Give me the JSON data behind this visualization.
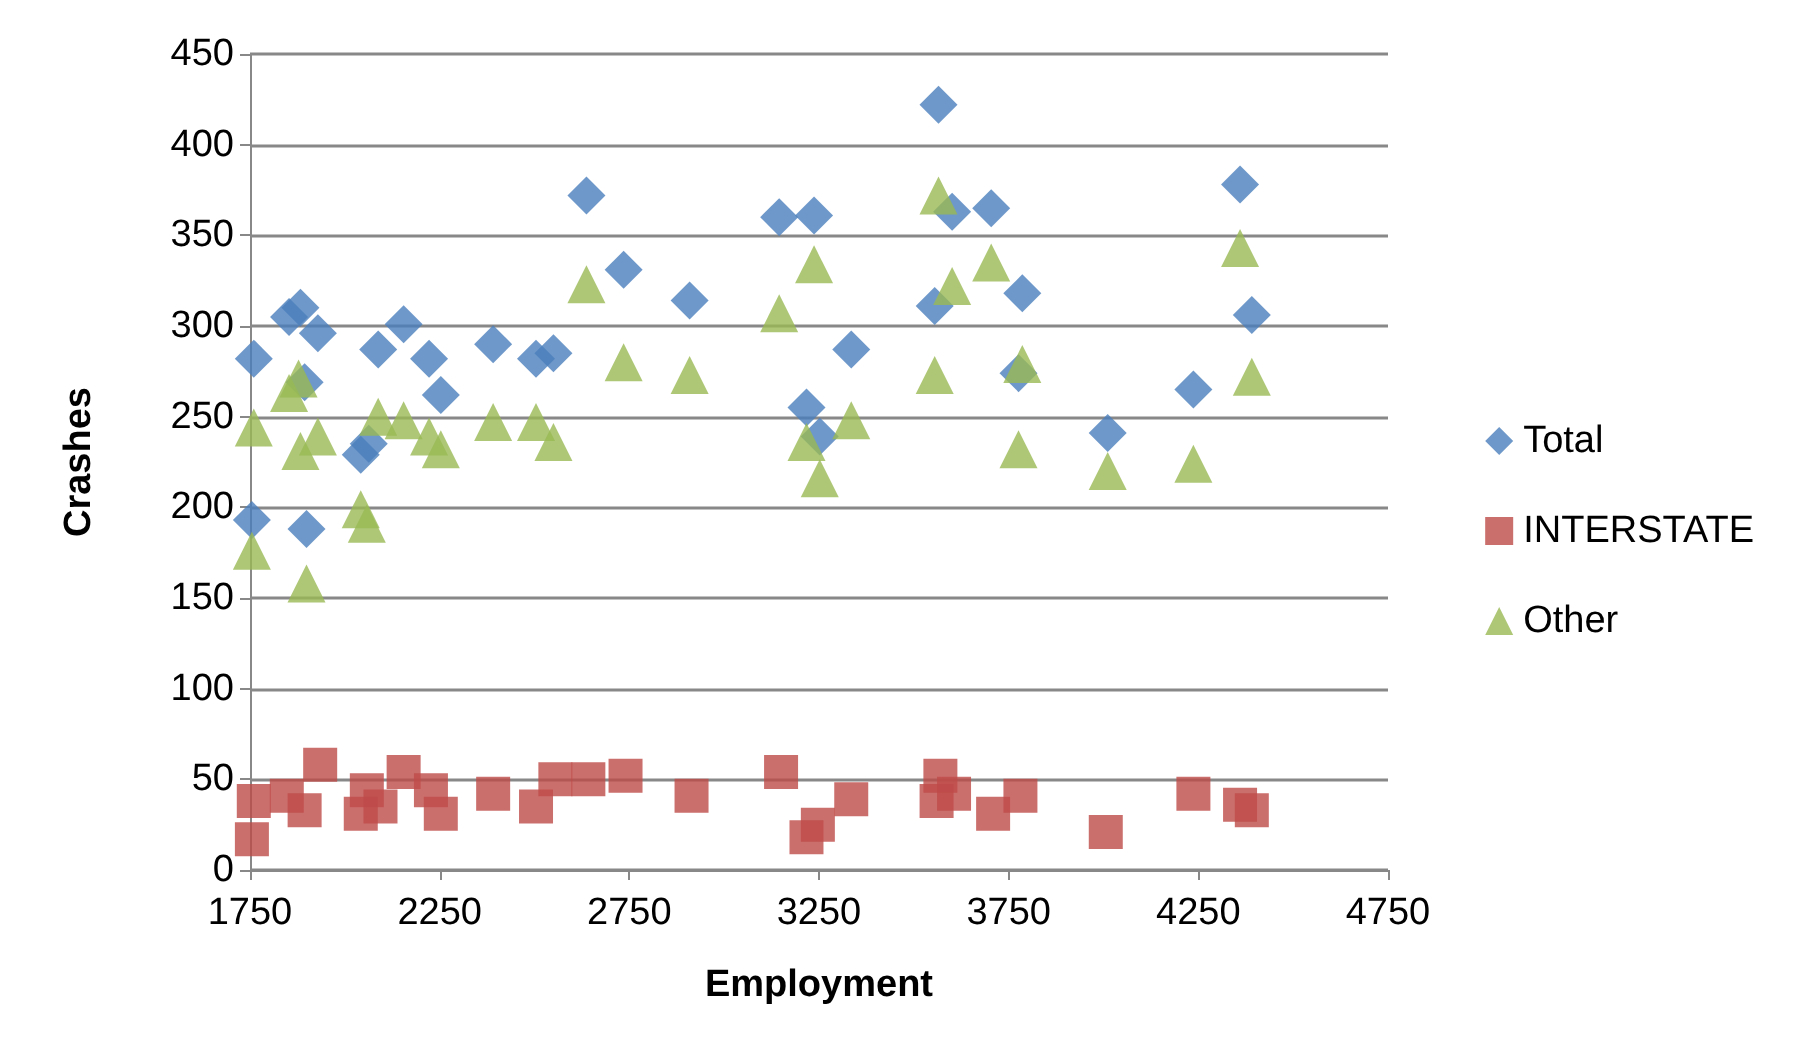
{
  "chart_data": {
    "type": "scatter",
    "xlabel": "Employment",
    "ylabel": "Crashes",
    "xlim": [
      1750,
      4750
    ],
    "xticks": [
      1750,
      2250,
      2750,
      3250,
      3750,
      4250,
      4750
    ],
    "ylim": [
      0,
      450
    ],
    "yticks": [
      0,
      50,
      100,
      150,
      200,
      250,
      300,
      350,
      400,
      450
    ],
    "grid": "y",
    "legend": "right",
    "series": [
      {
        "name": "Total",
        "color": "#4a7ebb",
        "marker": "diamond",
        "x": [
          1755,
          1760,
          1853,
          1883,
          1894,
          1899,
          1929,
          2042,
          2063,
          2088,
          2155,
          2222,
          2253,
          2391,
          2504,
          2550,
          2637,
          2735,
          2909,
          3145,
          3217,
          3237,
          3252,
          3335,
          3555,
          3565,
          3601,
          3704,
          3776,
          3786,
          4011,
          4237,
          4360,
          4391
        ],
        "values": [
          193,
          282,
          305,
          310,
          269,
          188,
          296,
          229,
          235,
          287,
          301,
          282,
          262,
          290,
          282,
          285,
          372,
          331,
          314,
          360,
          255,
          361,
          239,
          287,
          311,
          422,
          363,
          365,
          274,
          318,
          241,
          265,
          378,
          306
        ]
      },
      {
        "name": "INTERSTATE",
        "color": "#be4b48",
        "marker": "square",
        "x": [
          1755,
          1760,
          1847,
          1894,
          1935,
          2058,
          2042,
          2094,
          2155,
          2227,
          2253,
          2391,
          2504,
          2555,
          2642,
          2740,
          2914,
          3150,
          3217,
          3247,
          3335,
          3570,
          3560,
          3606,
          3709,
          3781,
          4006,
          4237,
          4360,
          4391
        ],
        "values": [
          17,
          38,
          41,
          33,
          58,
          44,
          31,
          35,
          54,
          44,
          31,
          42,
          35,
          50,
          50,
          52,
          41,
          54,
          18,
          25,
          39,
          52,
          38,
          42,
          31,
          41,
          21,
          42,
          36,
          33
        ]
      },
      {
        "name": "Other",
        "color": "#98b954",
        "marker": "triangle",
        "x": [
          1755,
          1760,
          1853,
          1878,
          1883,
          1899,
          1929,
          2042,
          2058,
          2088,
          2155,
          2222,
          2253,
          2391,
          2504,
          2550,
          2637,
          2735,
          2909,
          3145,
          3217,
          3237,
          3252,
          3335,
          3555,
          3565,
          3601,
          3704,
          3776,
          3786,
          4011,
          4237,
          4360,
          4391
        ],
        "values": [
          176,
          244,
          263,
          271,
          231,
          158,
          239,
          199,
          191,
          250,
          248,
          239,
          232,
          247,
          247,
          236,
          323,
          280,
          273,
          307,
          236,
          334,
          216,
          248,
          273,
          372,
          322,
          335,
          232,
          279,
          220,
          224,
          343,
          272
        ]
      }
    ]
  }
}
